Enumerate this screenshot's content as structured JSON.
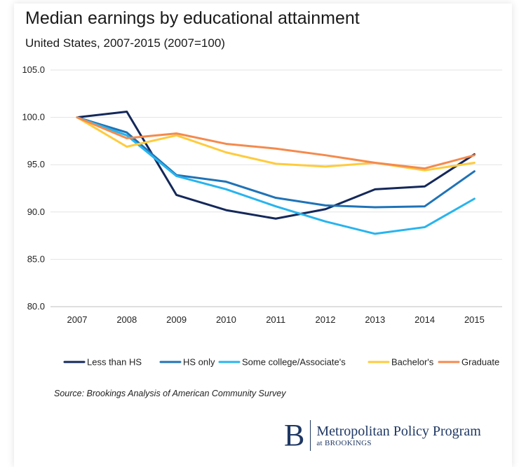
{
  "chart_data": {
    "type": "line",
    "title": "Median earnings by educational attainment",
    "subtitle": "United States, 2007-2015 (2007=100)",
    "xlabel": "",
    "ylabel": "",
    "categories": [
      "2007",
      "2008",
      "2009",
      "2010",
      "2011",
      "2012",
      "2013",
      "2014",
      "2015"
    ],
    "ylim": [
      80,
      105
    ],
    "yticks": [
      "105.0",
      "100.0",
      "95.0",
      "90.0",
      "85.0",
      "80.0"
    ],
    "grid": true,
    "legend_position": "bottom",
    "series": [
      {
        "name": "Less than HS",
        "color": "#14285a",
        "values": [
          100.0,
          100.6,
          91.8,
          90.2,
          89.3,
          90.3,
          92.4,
          92.7,
          96.1
        ]
      },
      {
        "name": "HS only",
        "color": "#1f73b7",
        "values": [
          100.0,
          98.4,
          93.9,
          93.2,
          91.5,
          90.7,
          90.5,
          90.6,
          94.3
        ]
      },
      {
        "name": "Some college/Associate's",
        "color": "#28b4ee",
        "values": [
          100.0,
          98.1,
          93.8,
          92.4,
          90.6,
          89.0,
          87.7,
          88.4,
          91.4
        ]
      },
      {
        "name": "Bachelor's",
        "color": "#ffcb3d",
        "values": [
          100.0,
          96.9,
          98.1,
          96.3,
          95.1,
          94.8,
          95.2,
          94.4,
          95.2
        ]
      },
      {
        "name": "Graduate",
        "color": "#f58a4c",
        "values": [
          100.0,
          97.8,
          98.3,
          97.2,
          96.7,
          96.0,
          95.2,
          94.6,
          96.0
        ]
      }
    ]
  },
  "source": "Source: Brookings Analysis of American Community Survey",
  "logo": {
    "mark": "B",
    "name": "Metropolitan Policy Program",
    "sub": "at BROOKINGS"
  }
}
